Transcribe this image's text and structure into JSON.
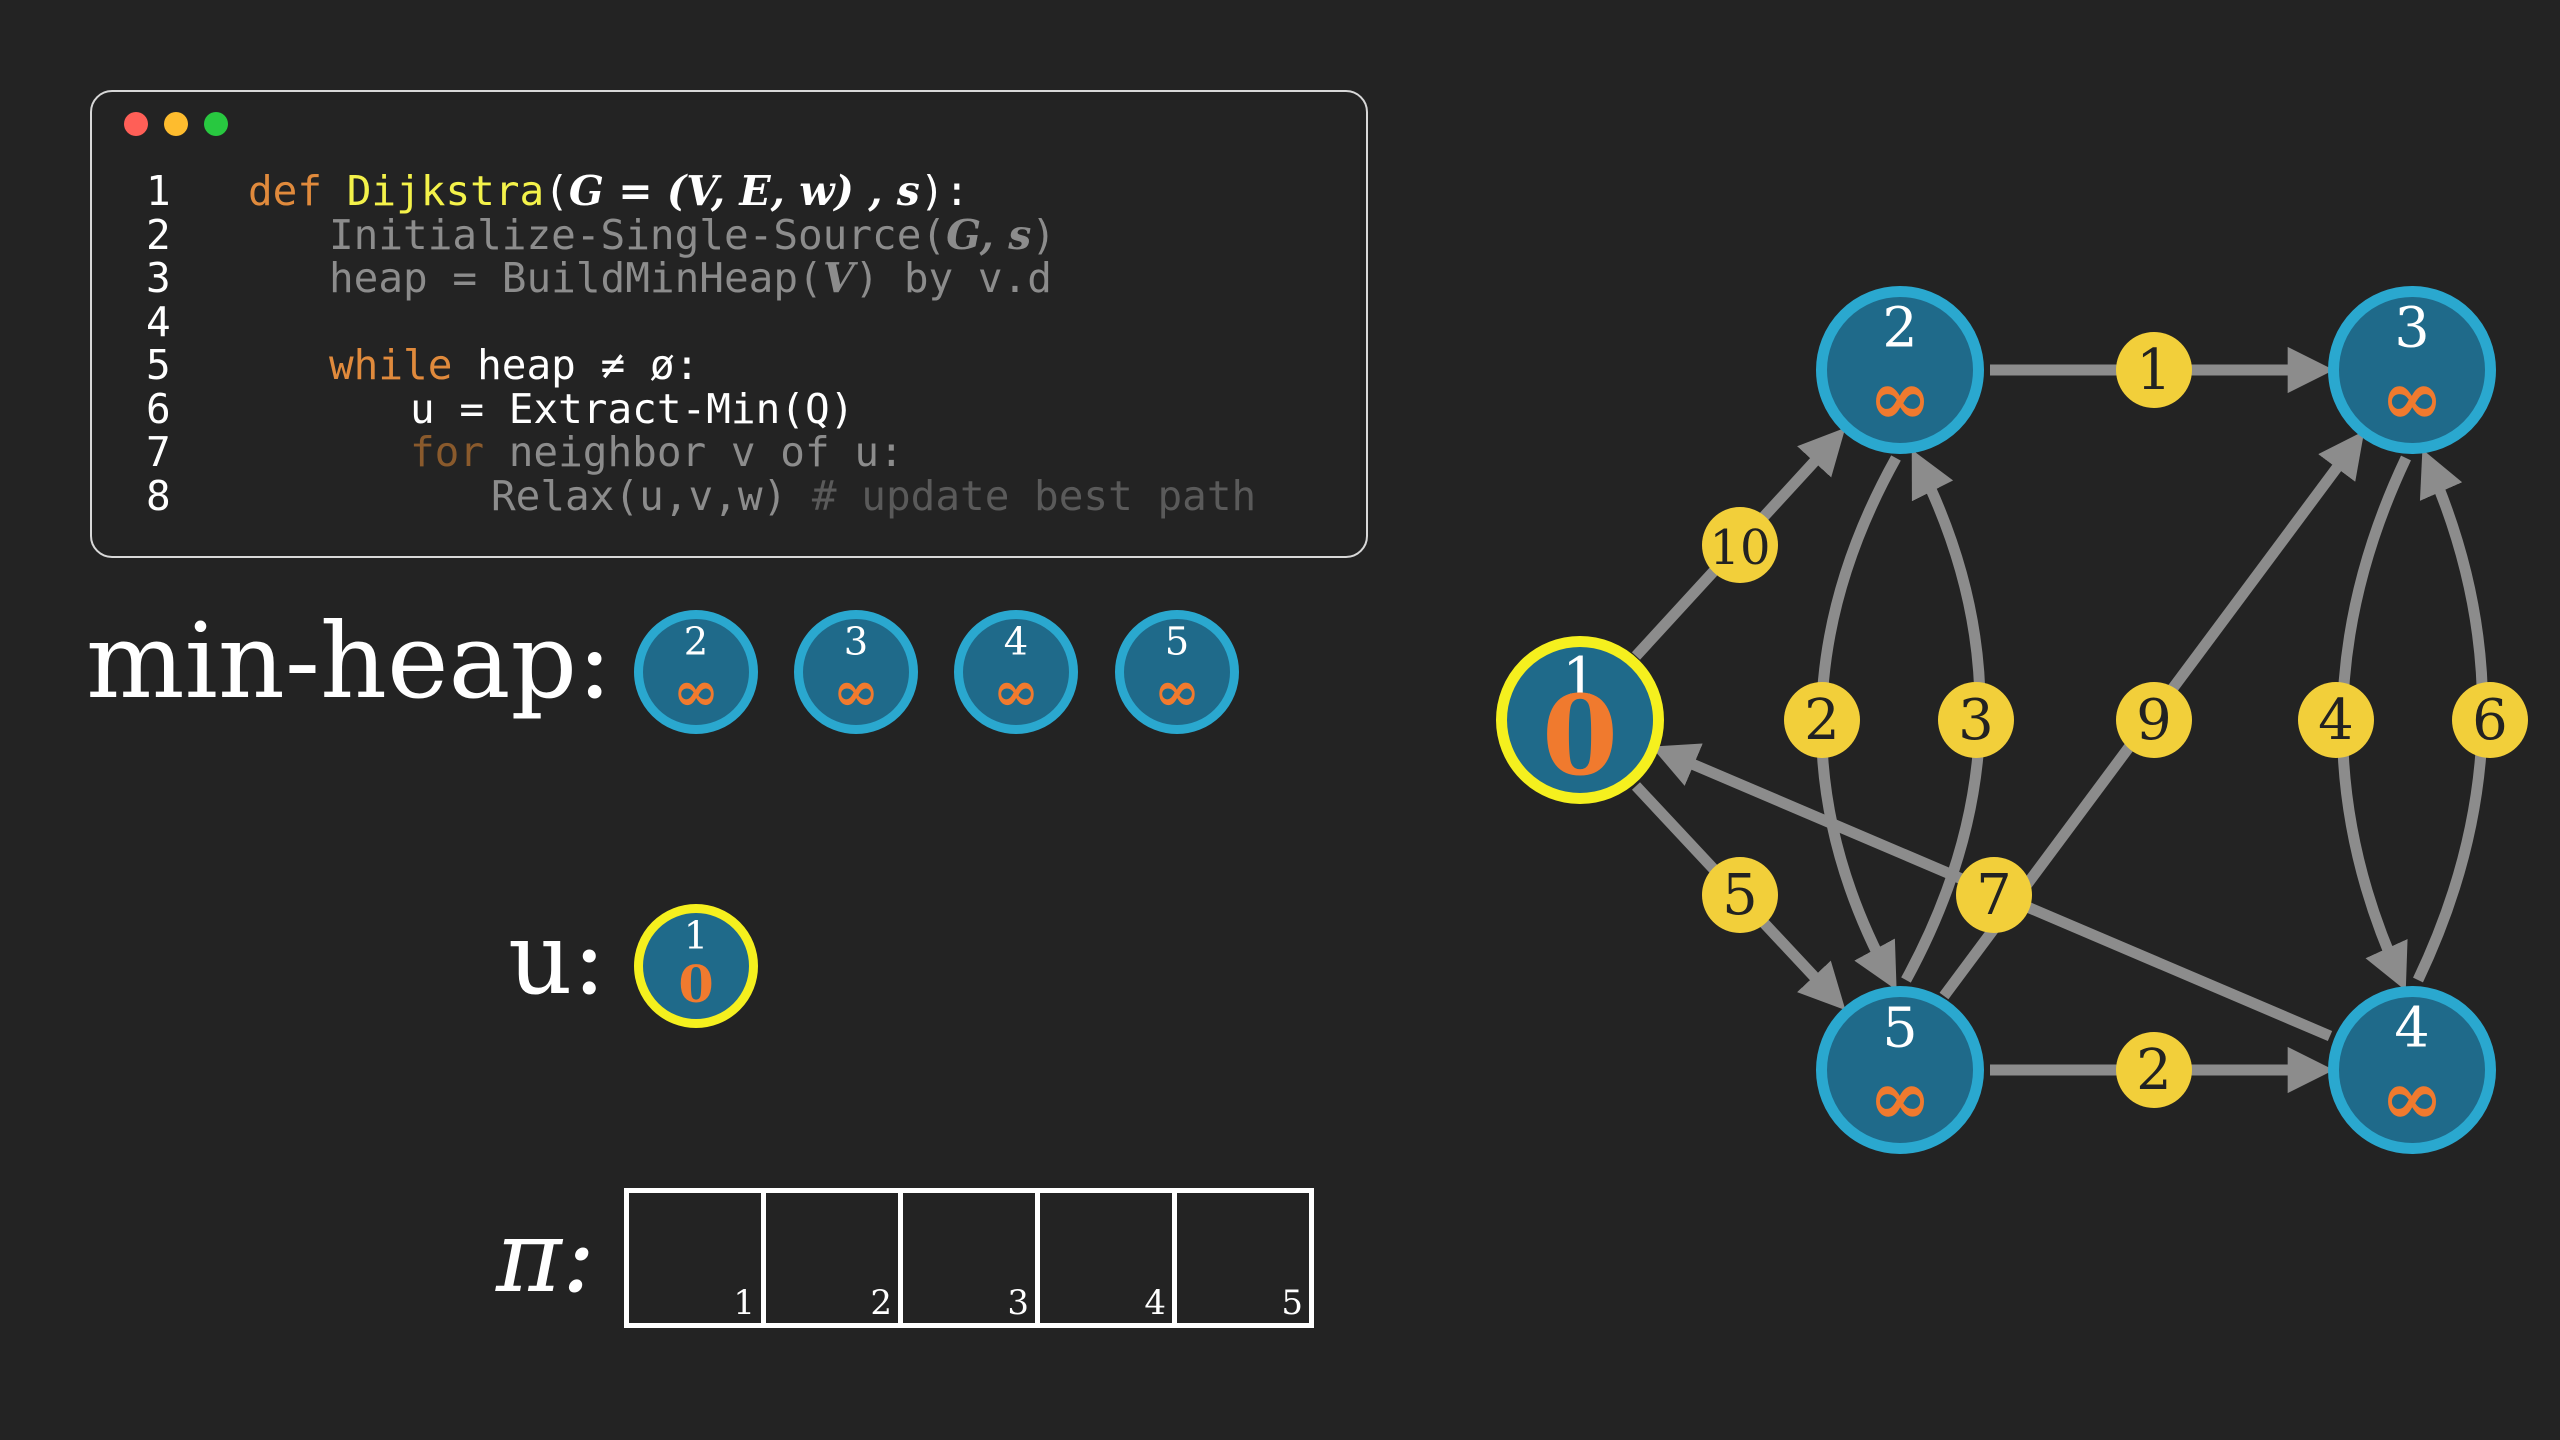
{
  "code": {
    "lines": [
      {
        "num": "1",
        "segments": [
          {
            "text": "def ",
            "color": "#e08a3c"
          },
          {
            "text": "Dijkstra",
            "color": "#f4f24a"
          },
          {
            "text": "(",
            "color": "#ffffff"
          },
          {
            "text": "G = (V, E, w) , s",
            "color": "#ffffff",
            "math": true
          },
          {
            "text": "):",
            "color": "#ffffff"
          }
        ]
      },
      {
        "num": "2",
        "indent": 1,
        "segments": [
          {
            "text": "Initialize-Single-Source(",
            "color": "#8c8c8c"
          },
          {
            "text": "G, s",
            "color": "#8c8c8c",
            "math": true
          },
          {
            "text": ")",
            "color": "#8c8c8c"
          }
        ]
      },
      {
        "num": "3",
        "indent": 1,
        "segments": [
          {
            "text": "heap = BuildMinHeap(",
            "color": "#8c8c8c"
          },
          {
            "text": "V",
            "color": "#8c8c8c",
            "math": true
          },
          {
            "text": ") by v.d",
            "color": "#8c8c8c"
          }
        ]
      },
      {
        "num": "4",
        "segments": []
      },
      {
        "num": "5",
        "indent": 1,
        "segments": [
          {
            "text": "while",
            "color": "#e08a3c"
          },
          {
            "text": " heap ≠ ø:",
            "color": "#ffffff"
          }
        ]
      },
      {
        "num": "6",
        "indent": 2,
        "segments": [
          {
            "text": "u = Extract-Min(Q)",
            "color": "#ffffff"
          }
        ]
      },
      {
        "num": "7",
        "indent": 2,
        "segments": [
          {
            "text": "for",
            "color": "#8a5a2c"
          },
          {
            "text": " neighbor v of u:",
            "color": "#8c8c8c"
          }
        ]
      },
      {
        "num": "8",
        "indent": 3,
        "segments": [
          {
            "text": "Relax(u,v,w)",
            "color": "#8c8c8c"
          },
          {
            "text": " # update best path",
            "color": "#5a5a5a"
          }
        ]
      }
    ]
  },
  "labels": {
    "heap": "min-heap:",
    "u": "u:",
    "pi": "π:"
  },
  "heap": [
    {
      "id": "2",
      "dist": "∞"
    },
    {
      "id": "3",
      "dist": "∞"
    },
    {
      "id": "4",
      "dist": "∞"
    },
    {
      "id": "5",
      "dist": "∞"
    }
  ],
  "current": {
    "id": "1",
    "dist": "0"
  },
  "pi_table": [
    "1",
    "2",
    "3",
    "4",
    "5"
  ],
  "graph": {
    "nodes": [
      {
        "id": "1",
        "dist": "0",
        "highlight": true
      },
      {
        "id": "2",
        "dist": "∞"
      },
      {
        "id": "3",
        "dist": "∞"
      },
      {
        "id": "4",
        "dist": "∞"
      },
      {
        "id": "5",
        "dist": "∞"
      }
    ],
    "edges": [
      {
        "from": "1",
        "to": "2",
        "weight": "10"
      },
      {
        "from": "1",
        "to": "5",
        "weight": "5"
      },
      {
        "from": "2",
        "to": "3",
        "weight": "1"
      },
      {
        "from": "2",
        "to": "5",
        "weight": "2"
      },
      {
        "from": "5",
        "to": "2",
        "weight": "3"
      },
      {
        "from": "5",
        "to": "3",
        "weight": "9"
      },
      {
        "from": "5",
        "to": "4",
        "weight": "2"
      },
      {
        "from": "4",
        "to": "1",
        "weight": "7"
      },
      {
        "from": "3",
        "to": "4",
        "weight": "4"
      },
      {
        "from": "4",
        "to": "3",
        "weight": "6"
      }
    ]
  },
  "colors": {
    "background": "#232323",
    "node_fill": "#1f6a8a",
    "node_ring": "#2aa8cf",
    "highlight_ring": "#f5f01e",
    "dist": "#f07a2e",
    "edge": "#8c8c8c",
    "weight_fill": "#f2cf3a",
    "dot_red": "#ff5f57",
    "dot_yellow": "#febc2e",
    "dot_green": "#28c840"
  }
}
